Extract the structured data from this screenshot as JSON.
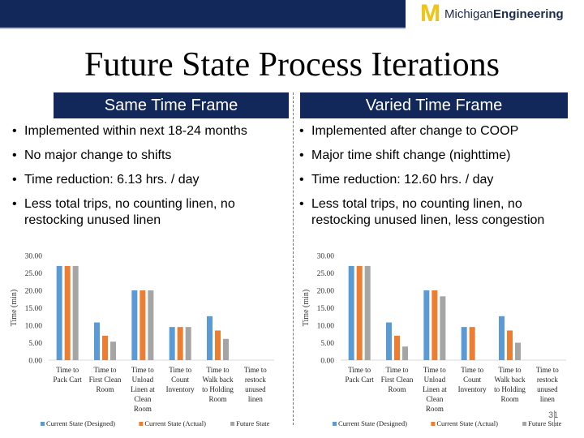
{
  "header": {
    "logo_text_regular": "Michigan",
    "logo_text_bold": "Engineering",
    "colors": {
      "band": "#12275a",
      "logo_gold": "#f0c419"
    }
  },
  "slide": {
    "title": "Future State Process Iterations",
    "left": {
      "heading": "Same Time Frame",
      "bullets": [
        "Implemented within next 18-24 months",
        "No major change to shifts",
        "Time reduction: 6.13 hrs. / day",
        "Less total trips, no counting linen, no restocking unused linen"
      ]
    },
    "right": {
      "heading": "Varied Time Frame",
      "bullets": [
        "Implemented after change to COOP",
        "Major time shift change (nighttime)",
        "Time reduction: 12.60 hrs. / day",
        "Less total trips, no counting linen, no restocking unused linen, less congestion"
      ]
    },
    "page_number": "31"
  },
  "chart_data": [
    {
      "type": "bar",
      "ylabel": "Time (min)",
      "ylim": [
        0,
        30
      ],
      "yticks": [
        "0.00",
        "5.00",
        "10.00",
        "15.00",
        "20.00",
        "25.00",
        "30.00"
      ],
      "categories": [
        [
          "Time to",
          "Pack Cart"
        ],
        [
          "Time to",
          "First Clean",
          "Room"
        ],
        [
          "Time to",
          "Unload",
          "Linen at",
          "Clean",
          "Room"
        ],
        [
          "Time to",
          "Count",
          "Inventory"
        ],
        [
          "Time to",
          "Walk back",
          "to Holding",
          "Room"
        ],
        [
          "Time to",
          "restock",
          "unused",
          "linen"
        ]
      ],
      "series": [
        {
          "name": "Current State (Designed)",
          "color": "#5b9bd5",
          "values": [
            27.0,
            10.8,
            20.0,
            9.5,
            12.6,
            0
          ]
        },
        {
          "name": "Current State (Actual)",
          "color": "#ed7d31",
          "values": [
            27.0,
            7.0,
            20.0,
            9.5,
            8.5,
            0
          ]
        },
        {
          "name": "Future State",
          "color": "#a5a5a5",
          "values": [
            27.0,
            5.3,
            20.0,
            9.5,
            6.1,
            0
          ]
        }
      ]
    },
    {
      "type": "bar",
      "ylabel": "Time (min)",
      "ylim": [
        0,
        30
      ],
      "yticks": [
        "0.00",
        "5.00",
        "10.00",
        "15.00",
        "20.00",
        "25.00",
        "30.00"
      ],
      "categories": [
        [
          "Time to",
          "Pack Cart"
        ],
        [
          "Time to",
          "First Clean",
          "Room"
        ],
        [
          "Time to",
          "Unload",
          "Linen at",
          "Clean",
          "Room"
        ],
        [
          "Time to",
          "Count",
          "Inventory"
        ],
        [
          "Time to",
          "Walk back",
          "to Holding",
          "Room"
        ],
        [
          "Time to",
          "restock",
          "unused",
          "linen"
        ]
      ],
      "series": [
        {
          "name": "Current State (Designed)",
          "color": "#5b9bd5",
          "values": [
            27.0,
            10.8,
            20.0,
            9.5,
            12.6,
            0
          ]
        },
        {
          "name": "Current State (Actual)",
          "color": "#ed7d31",
          "values": [
            27.0,
            7.0,
            20.0,
            9.5,
            8.5,
            0
          ]
        },
        {
          "name": "Future State",
          "color": "#a5a5a5",
          "values": [
            27.0,
            3.9,
            18.3,
            0,
            5.0,
            0
          ]
        }
      ]
    }
  ]
}
